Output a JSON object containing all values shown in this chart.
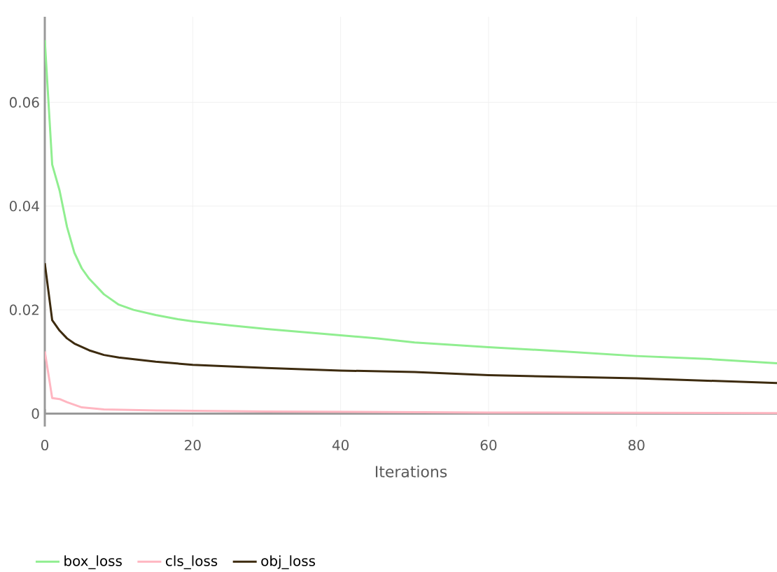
{
  "chart_data": {
    "type": "line",
    "xlabel": "Iterations",
    "xlim": [
      0,
      99
    ],
    "ylim": [
      -0.0025,
      0.0765
    ],
    "xticks": [
      0,
      20,
      40,
      60,
      80
    ],
    "yticks": [
      0,
      0.02,
      0.04,
      0.06
    ],
    "grid": true,
    "legend": "bottom left",
    "marker": "none",
    "line_style": "solid",
    "series": [
      {
        "name": "box_loss",
        "color": "#90ee90",
        "x": [
          0,
          1,
          2,
          3,
          4,
          5,
          6,
          8,
          10,
          12,
          15,
          18,
          20,
          25,
          30,
          35,
          40,
          45,
          50,
          60,
          70,
          80,
          90,
          99
        ],
        "values": [
          0.072,
          0.048,
          0.043,
          0.036,
          0.031,
          0.028,
          0.026,
          0.023,
          0.021,
          0.02,
          0.019,
          0.0182,
          0.0178,
          0.017,
          0.0163,
          0.0157,
          0.0151,
          0.0145,
          0.0137,
          0.0128,
          0.012,
          0.0111,
          0.0105,
          0.0097
        ]
      },
      {
        "name": "cls_loss",
        "color": "#ffb6c1",
        "x": [
          0,
          1,
          2,
          3,
          5,
          8,
          15,
          30,
          60,
          99
        ],
        "values": [
          0.012,
          0.003,
          0.0028,
          0.0022,
          0.0012,
          0.0008,
          0.0006,
          0.0004,
          0.0002,
          0.0001
        ]
      },
      {
        "name": "obj_loss",
        "color": "#3d2b0f",
        "x": [
          0,
          1,
          2,
          3,
          4,
          6,
          8,
          10,
          15,
          20,
          30,
          40,
          50,
          60,
          80,
          99
        ],
        "values": [
          0.029,
          0.018,
          0.016,
          0.0145,
          0.0135,
          0.0122,
          0.0113,
          0.0108,
          0.01,
          0.0094,
          0.0088,
          0.0083,
          0.008,
          0.0074,
          0.0068,
          0.0059
        ]
      }
    ]
  }
}
